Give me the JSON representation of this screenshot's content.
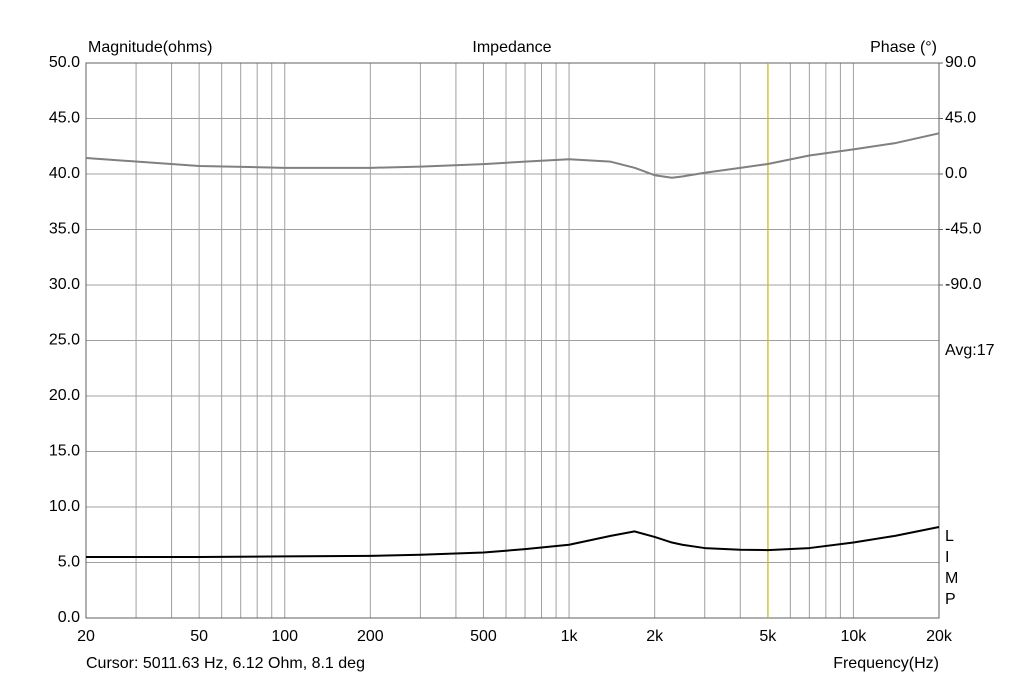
{
  "chart_data": {
    "type": "line",
    "title": "Impedance",
    "y_label": "Magnitude(ohms)",
    "y2_label": "Phase (°)",
    "x_label": "Frequency(Hz)",
    "xscale": "log",
    "xlim": [
      20,
      20000
    ],
    "xticks": [
      20,
      50,
      100,
      200,
      500,
      {
        "value": 1000,
        "label": "1k"
      },
      {
        "value": 2000,
        "label": "2k"
      },
      {
        "value": 5000,
        "label": "5k"
      },
      {
        "value": 10000,
        "label": "10k"
      },
      {
        "value": 20000,
        "label": "20k"
      }
    ],
    "xgrid_minor": [
      30,
      40,
      60,
      70,
      80,
      90,
      300,
      400,
      600,
      700,
      800,
      900,
      3000,
      4000,
      6000,
      7000,
      8000,
      9000
    ],
    "ylim": [
      0,
      50
    ],
    "yticks": [
      {
        "value": 0,
        "label": "0.0"
      },
      {
        "value": 5,
        "label": "5.0"
      },
      {
        "value": 10,
        "label": "10.0"
      },
      {
        "value": 15,
        "label": "15.0"
      },
      {
        "value": 20,
        "label": "20.0"
      },
      {
        "value": 25,
        "label": "25.0"
      },
      {
        "value": 30,
        "label": "30.0"
      },
      {
        "value": 35,
        "label": "35.0"
      },
      {
        "value": 40,
        "label": "40.0"
      },
      {
        "value": 45,
        "label": "45.0"
      },
      {
        "value": 50,
        "label": "50.0"
      }
    ],
    "y2lim": [
      -360,
      90
    ],
    "y2ticks": [
      {
        "value": -90,
        "label": "-90.0"
      },
      {
        "value": -45,
        "label": "-45.0"
      },
      {
        "value": 0,
        "label": "0.0"
      },
      {
        "value": 45,
        "label": "45.0"
      },
      {
        "value": 90,
        "label": "90.0"
      }
    ],
    "grid": true,
    "x": [
      20,
      50,
      100,
      200,
      300,
      500,
      700,
      1000,
      1400,
      1700,
      2000,
      2300,
      2500,
      3000,
      4000,
      5000,
      7000,
      10000,
      14000,
      20000
    ],
    "series": [
      {
        "name": "Magnitude",
        "color": "#000000",
        "values": [
          5.5,
          5.5,
          5.55,
          5.6,
          5.7,
          5.9,
          6.2,
          6.6,
          7.4,
          7.8,
          7.3,
          6.8,
          6.6,
          6.3,
          6.15,
          6.12,
          6.3,
          6.8,
          7.4,
          8.2
        ]
      },
      {
        "name": "Phase",
        "color": "#808080",
        "axis": "y2",
        "values": [
          13,
          6.5,
          5,
          5,
          6,
          8,
          10,
          12,
          10,
          5,
          -1,
          -3,
          -2,
          1,
          5,
          8.1,
          15,
          20,
          25,
          33
        ]
      }
    ],
    "cursor": {
      "x": 5011.63,
      "color": "#c8c800",
      "label": "Cursor: 5011.63 Hz, 6.12 Ohm, 8.1 deg"
    },
    "average_label": "Avg:17",
    "curve_letters": [
      "L",
      "I",
      "M",
      "P"
    ]
  }
}
